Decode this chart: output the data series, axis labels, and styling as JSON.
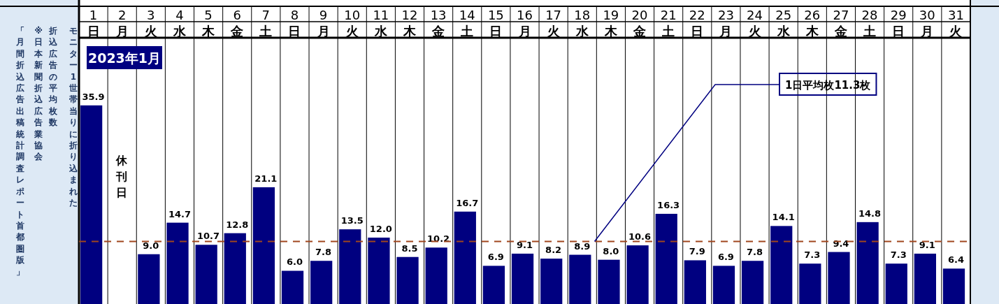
{
  "chart_data": {
    "type": "bar",
    "title": "2023年1月",
    "ylabel": "モニター1世帯当りに折り込まれた折込広告の平均枚数",
    "annotations": [
      "※日本新聞折込広告業協会",
      "「月間折込広告出稿統計調査レポート首都圏版」",
      "休刊日"
    ],
    "categories": [
      "1\n日",
      "2\n月",
      "3\n火",
      "4\n水",
      "5\n木",
      "6\n金",
      "7\n土",
      "8\n日",
      "9\n月",
      "10\n火",
      "11\n水",
      "12\n木",
      "13\n金",
      "14\n土",
      "15\n日",
      "16\n月",
      "17\n火",
      "18\n水",
      "19\n木",
      "20\n金",
      "21\n土",
      "22\n日",
      "23\n月",
      "24\n火",
      "25\n水",
      "26\n木",
      "27\n金",
      "28\n土",
      "29\n日",
      "30\n月",
      "31\n火"
    ],
    "values": [
      35.9,
      null,
      9.0,
      14.7,
      10.7,
      12.8,
      21.1,
      6.0,
      7.8,
      13.5,
      12.0,
      8.5,
      10.2,
      16.7,
      6.9,
      9.1,
      8.2,
      8.9,
      8.0,
      10.6,
      16.3,
      7.9,
      6.9,
      7.8,
      14.1,
      7.3,
      9.4,
      14.8,
      7.3,
      9.1,
      6.4
    ],
    "value_labels": [
      "35.9",
      null,
      "9.0",
      "14.7",
      "10.7",
      "12.8",
      "21.1",
      "6.0",
      "7.8",
      "13.5",
      "12.0",
      "8.5",
      "10.2",
      "16.7",
      "6.9",
      "9.1",
      "8.2",
      "8.9",
      "8.0",
      "10.6",
      "16.3",
      "7.9",
      "6.9",
      "7.8",
      "14.1",
      "7.3",
      "9.4",
      "14.8",
      "7.3",
      "9.1",
      "6.4"
    ],
    "color": "#000080",
    "ref_lines": [
      {
        "axis": "y",
        "value": 11.3,
        "label": "1日平均枚11.3枚",
        "color": "#a0461e",
        "line_style": "dashed"
      }
    ]
  }
}
